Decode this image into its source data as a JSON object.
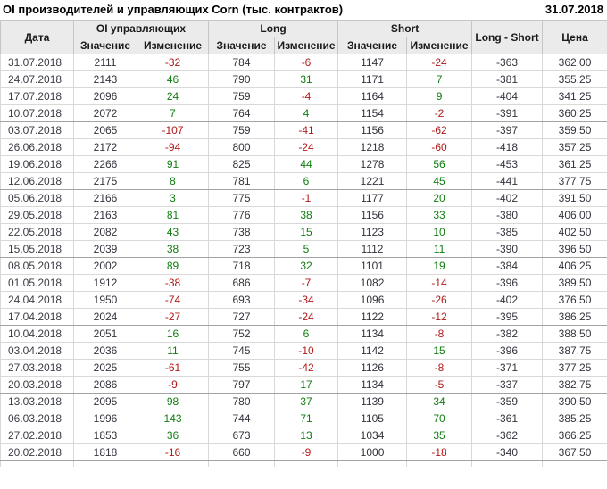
{
  "header": {
    "title": "OI производителей и управляющих Corn (тыс. контрактов)",
    "date": "31.07.2018"
  },
  "table": {
    "headers": {
      "date": "Дата",
      "group_oi": "OI управляющих",
      "group_long": "Long",
      "group_short": "Short",
      "value": "Значение",
      "change": "Изменение",
      "long_short": "Long - Short",
      "price": "Цена"
    },
    "rows": [
      [
        "31.07.2018",
        "2111",
        "-32",
        "784",
        "-6",
        "1147",
        "-24",
        "-363",
        "362.00"
      ],
      [
        "24.07.2018",
        "2143",
        "46",
        "790",
        "31",
        "1171",
        "7",
        "-381",
        "355.25"
      ],
      [
        "17.07.2018",
        "2096",
        "24",
        "759",
        "-4",
        "1164",
        "9",
        "-404",
        "341.25"
      ],
      [
        "10.07.2018",
        "2072",
        "7",
        "764",
        "4",
        "1154",
        "-2",
        "-391",
        "360.25"
      ],
      [
        "03.07.2018",
        "2065",
        "-107",
        "759",
        "-41",
        "1156",
        "-62",
        "-397",
        "359.50"
      ],
      [
        "26.06.2018",
        "2172",
        "-94",
        "800",
        "-24",
        "1218",
        "-60",
        "-418",
        "357.25"
      ],
      [
        "19.06.2018",
        "2266",
        "91",
        "825",
        "44",
        "1278",
        "56",
        "-453",
        "361.25"
      ],
      [
        "12.06.2018",
        "2175",
        "8",
        "781",
        "6",
        "1221",
        "45",
        "-441",
        "377.75"
      ],
      [
        "05.06.2018",
        "2166",
        "3",
        "775",
        "-1",
        "1177",
        "20",
        "-402",
        "391.50"
      ],
      [
        "29.05.2018",
        "2163",
        "81",
        "776",
        "38",
        "1156",
        "33",
        "-380",
        "406.00"
      ],
      [
        "22.05.2018",
        "2082",
        "43",
        "738",
        "15",
        "1123",
        "10",
        "-385",
        "402.50"
      ],
      [
        "15.05.2018",
        "2039",
        "38",
        "723",
        "5",
        "1112",
        "11",
        "-390",
        "396.50"
      ],
      [
        "08.05.2018",
        "2002",
        "89",
        "718",
        "32",
        "1101",
        "19",
        "-384",
        "406.25"
      ],
      [
        "01.05.2018",
        "1912",
        "-38",
        "686",
        "-7",
        "1082",
        "-14",
        "-396",
        "389.50"
      ],
      [
        "24.04.2018",
        "1950",
        "-74",
        "693",
        "-34",
        "1096",
        "-26",
        "-402",
        "376.50"
      ],
      [
        "17.04.2018",
        "2024",
        "-27",
        "727",
        "-24",
        "1122",
        "-12",
        "-395",
        "386.25"
      ],
      [
        "10.04.2018",
        "2051",
        "16",
        "752",
        "6",
        "1134",
        "-8",
        "-382",
        "388.50"
      ],
      [
        "03.04.2018",
        "2036",
        "11",
        "745",
        "-10",
        "1142",
        "15",
        "-396",
        "387.75"
      ],
      [
        "27.03.2018",
        "2025",
        "-61",
        "755",
        "-42",
        "1126",
        "-8",
        "-371",
        "377.25"
      ],
      [
        "20.03.2018",
        "2086",
        "-9",
        "797",
        "17",
        "1134",
        "-5",
        "-337",
        "382.75"
      ],
      [
        "13.03.2018",
        "2095",
        "98",
        "780",
        "37",
        "1139",
        "34",
        "-359",
        "390.50"
      ],
      [
        "06.03.2018",
        "1996",
        "143",
        "744",
        "71",
        "1105",
        "70",
        "-361",
        "385.25"
      ],
      [
        "27.02.2018",
        "1853",
        "36",
        "673",
        "13",
        "1034",
        "35",
        "-362",
        "366.25"
      ],
      [
        "20.02.2018",
        "1818",
        "-16",
        "660",
        "-9",
        "1000",
        "-18",
        "-340",
        "367.50"
      ]
    ]
  },
  "colors": {
    "positive": "#0f7d0f",
    "negative": "#b01818",
    "header_bg": "#ebebeb",
    "text": "#33333d"
  }
}
